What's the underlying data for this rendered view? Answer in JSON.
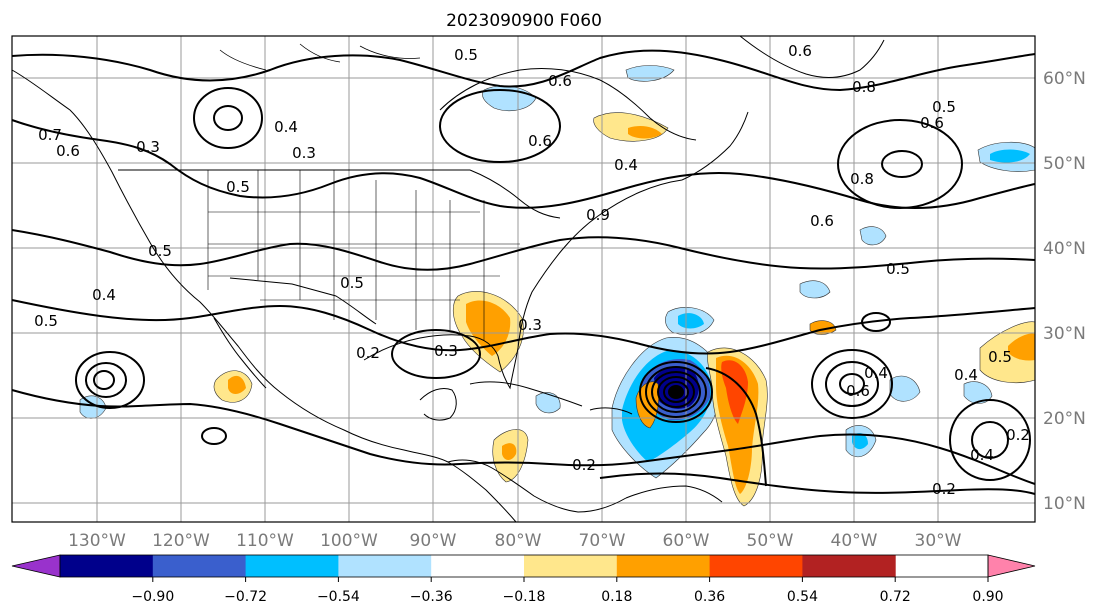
{
  "title": "2023090900 F060",
  "longitude_labels": [
    "130°W",
    "120°W",
    "110°W",
    "100°W",
    "90°W",
    "80°W",
    "70°W",
    "60°W",
    "50°W",
    "40°W",
    "30°W"
  ],
  "latitude_labels": [
    "60°N",
    "50°N",
    "40°N",
    "30°N",
    "20°N",
    "10°N"
  ],
  "colorbar": {
    "colors": [
      "#9932cc",
      "#00008b",
      "#3a5fcd",
      "#00bfff",
      "#b0e2ff",
      "#ffffff",
      "#ffe78c",
      "#ffa000",
      "#ff4500",
      "#b22222",
      "#ff82ab"
    ],
    "tick_labels": [
      "−0.90",
      "−0.72",
      "−0.54",
      "−0.36",
      "−0.18",
      "0.18",
      "0.36",
      "0.54",
      "0.72",
      "0.90"
    ]
  },
  "contour_labels": [
    {
      "text": "0.5"
    },
    {
      "text": "0.6"
    },
    {
      "text": "0.6"
    },
    {
      "text": "0.6"
    },
    {
      "text": "0.8"
    },
    {
      "text": "0.5"
    },
    {
      "text": "0.6"
    },
    {
      "text": "0.4"
    },
    {
      "text": "0.8"
    },
    {
      "text": "0.6"
    },
    {
      "text": "0.5"
    },
    {
      "text": "0.3"
    },
    {
      "text": "0.4"
    },
    {
      "text": "0.3"
    },
    {
      "text": "0.5"
    },
    {
      "text": "0.5"
    },
    {
      "text": "0.4"
    },
    {
      "text": "0.5"
    },
    {
      "text": "0.5"
    },
    {
      "text": "0.3"
    },
    {
      "text": "0.2"
    },
    {
      "text": "0.3"
    },
    {
      "text": "0.9"
    },
    {
      "text": "0.2"
    },
    {
      "text": "0.2"
    },
    {
      "text": "0.4"
    },
    {
      "text": "0.2"
    },
    {
      "text": "0.5"
    },
    {
      "text": "0.4"
    },
    {
      "text": "0.6"
    },
    {
      "text": "0.4"
    },
    {
      "text": "0.7"
    },
    {
      "text": "0.6"
    }
  ]
}
